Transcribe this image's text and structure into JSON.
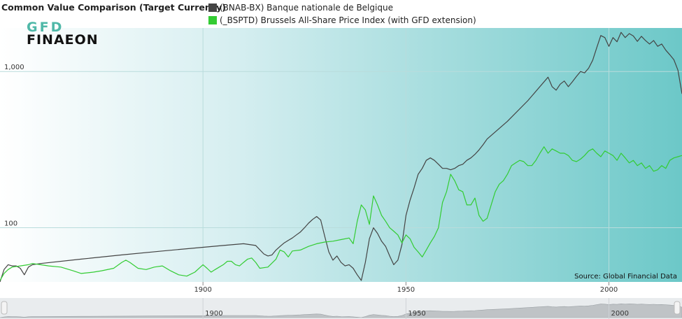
{
  "chart_data": {
    "type": "line",
    "title": "Common Value Comparison (Target Currency)",
    "xlim": [
      1850,
      2018
    ],
    "ylim": [
      45,
      1900
    ],
    "yscale": "log",
    "x_ticks": [
      1900,
      1950,
      2000
    ],
    "y_ticks": [
      100,
      1000
    ],
    "y_tick_labels": [
      "100",
      "1,000"
    ],
    "navigator_ticks": [
      "1900",
      "1950",
      "2000"
    ],
    "source": "Source: Global Financial Data",
    "grid": true,
    "series": [
      {
        "name": "(BNAB-BX) Banque nationale de Belgique",
        "color": "#444444",
        "points": [
          [
            1850,
            45
          ],
          [
            1851,
            54
          ],
          [
            1852,
            58
          ],
          [
            1853,
            57
          ],
          [
            1854,
            57
          ],
          [
            1855,
            55
          ],
          [
            1856,
            50
          ],
          [
            1857,
            56
          ],
          [
            1858,
            58
          ],
          [
            1860,
            59
          ],
          [
            1870,
            63
          ],
          [
            1880,
            67
          ],
          [
            1890,
            71
          ],
          [
            1895,
            73
          ],
          [
            1900,
            75
          ],
          [
            1905,
            77
          ],
          [
            1910,
            79
          ],
          [
            1913,
            77
          ],
          [
            1915,
            68
          ],
          [
            1916,
            66
          ],
          [
            1917,
            67
          ],
          [
            1918,
            72
          ],
          [
            1919,
            76
          ],
          [
            1920,
            80
          ],
          [
            1921,
            83
          ],
          [
            1922,
            86
          ],
          [
            1923,
            90
          ],
          [
            1924,
            94
          ],
          [
            1925,
            100
          ],
          [
            1926,
            107
          ],
          [
            1927,
            113
          ],
          [
            1928,
            118
          ],
          [
            1929,
            112
          ],
          [
            1930,
            88
          ],
          [
            1931,
            70
          ],
          [
            1932,
            62
          ],
          [
            1933,
            66
          ],
          [
            1934,
            60
          ],
          [
            1935,
            57
          ],
          [
            1936,
            58
          ],
          [
            1937,
            55
          ],
          [
            1938,
            50
          ],
          [
            1939,
            46
          ],
          [
            1940,
            60
          ],
          [
            1941,
            85
          ],
          [
            1942,
            100
          ],
          [
            1943,
            92
          ],
          [
            1944,
            82
          ],
          [
            1945,
            76
          ],
          [
            1946,
            66
          ],
          [
            1947,
            58
          ],
          [
            1948,
            62
          ],
          [
            1949,
            78
          ],
          [
            1950,
            120
          ],
          [
            1951,
            150
          ],
          [
            1952,
            180
          ],
          [
            1953,
            220
          ],
          [
            1954,
            240
          ],
          [
            1955,
            270
          ],
          [
            1956,
            280
          ],
          [
            1957,
            270
          ],
          [
            1958,
            255
          ],
          [
            1959,
            240
          ],
          [
            1960,
            240
          ],
          [
            1961,
            235
          ],
          [
            1962,
            240
          ],
          [
            1963,
            250
          ],
          [
            1964,
            255
          ],
          [
            1965,
            270
          ],
          [
            1966,
            280
          ],
          [
            1967,
            295
          ],
          [
            1968,
            315
          ],
          [
            1969,
            340
          ],
          [
            1970,
            370
          ],
          [
            1975,
            480
          ],
          [
            1980,
            650
          ],
          [
            1985,
            920
          ],
          [
            1986,
            800
          ],
          [
            1987,
            760
          ],
          [
            1988,
            830
          ],
          [
            1989,
            870
          ],
          [
            1990,
            800
          ],
          [
            1991,
            860
          ],
          [
            1992,
            930
          ],
          [
            1993,
            1000
          ],
          [
            1994,
            980
          ],
          [
            1995,
            1050
          ],
          [
            1996,
            1180
          ],
          [
            1997,
            1420
          ],
          [
            1998,
            1700
          ],
          [
            1999,
            1650
          ],
          [
            2000,
            1450
          ],
          [
            2001,
            1650
          ],
          [
            2002,
            1550
          ],
          [
            2003,
            1780
          ],
          [
            2004,
            1650
          ],
          [
            2005,
            1750
          ],
          [
            2006,
            1690
          ],
          [
            2007,
            1560
          ],
          [
            2008,
            1680
          ],
          [
            2009,
            1580
          ],
          [
            2010,
            1500
          ],
          [
            2011,
            1580
          ],
          [
            2012,
            1450
          ],
          [
            2013,
            1500
          ],
          [
            2014,
            1370
          ],
          [
            2015,
            1280
          ],
          [
            2016,
            1190
          ],
          [
            2017,
            1020
          ],
          [
            2018,
            720
          ]
        ]
      },
      {
        "name": "(_BSPTD) Brussels All-Share Price Index (with GFD extension)",
        "color": "#33cc33",
        "points": [
          [
            1850,
            46
          ],
          [
            1851,
            51
          ],
          [
            1852,
            54
          ],
          [
            1853,
            56
          ],
          [
            1855,
            57
          ],
          [
            1857,
            58
          ],
          [
            1858,
            59
          ],
          [
            1860,
            58
          ],
          [
            1862,
            57
          ],
          [
            1865,
            56
          ],
          [
            1868,
            53
          ],
          [
            1870,
            51
          ],
          [
            1873,
            52
          ],
          [
            1875,
            53
          ],
          [
            1878,
            55
          ],
          [
            1880,
            60
          ],
          [
            1881,
            62
          ],
          [
            1882,
            60
          ],
          [
            1884,
            55
          ],
          [
            1886,
            54
          ],
          [
            1888,
            56
          ],
          [
            1890,
            57
          ],
          [
            1892,
            53
          ],
          [
            1894,
            50
          ],
          [
            1896,
            49
          ],
          [
            1898,
            52
          ],
          [
            1900,
            58
          ],
          [
            1901,
            55
          ],
          [
            1902,
            52
          ],
          [
            1903,
            54
          ],
          [
            1904,
            56
          ],
          [
            1905,
            58
          ],
          [
            1906,
            61
          ],
          [
            1907,
            61
          ],
          [
            1908,
            58
          ],
          [
            1909,
            57
          ],
          [
            1910,
            60
          ],
          [
            1911,
            63
          ],
          [
            1912,
            64
          ],
          [
            1913,
            60
          ],
          [
            1914,
            55
          ],
          [
            1916,
            56
          ],
          [
            1918,
            63
          ],
          [
            1919,
            72
          ],
          [
            1920,
            70
          ],
          [
            1921,
            65
          ],
          [
            1922,
            71
          ],
          [
            1924,
            72
          ],
          [
            1926,
            76
          ],
          [
            1928,
            79
          ],
          [
            1930,
            81
          ],
          [
            1932,
            82
          ],
          [
            1934,
            84
          ],
          [
            1936,
            86
          ],
          [
            1937,
            79
          ],
          [
            1938,
            110
          ],
          [
            1939,
            140
          ],
          [
            1940,
            130
          ],
          [
            1941,
            105
          ],
          [
            1942,
            160
          ],
          [
            1943,
            140
          ],
          [
            1944,
            120
          ],
          [
            1945,
            110
          ],
          [
            1946,
            100
          ],
          [
            1947,
            95
          ],
          [
            1948,
            90
          ],
          [
            1949,
            80
          ],
          [
            1950,
            90
          ],
          [
            1951,
            85
          ],
          [
            1952,
            75
          ],
          [
            1953,
            70
          ],
          [
            1954,
            65
          ],
          [
            1955,
            72
          ],
          [
            1956,
            80
          ],
          [
            1957,
            88
          ],
          [
            1958,
            100
          ],
          [
            1959,
            145
          ],
          [
            1960,
            170
          ],
          [
            1961,
            220
          ],
          [
            1962,
            200
          ],
          [
            1963,
            175
          ],
          [
            1964,
            170
          ],
          [
            1965,
            140
          ],
          [
            1966,
            140
          ],
          [
            1967,
            155
          ],
          [
            1968,
            120
          ],
          [
            1969,
            110
          ],
          [
            1970,
            115
          ],
          [
            1971,
            140
          ],
          [
            1972,
            170
          ],
          [
            1973,
            190
          ],
          [
            1974,
            200
          ],
          [
            1975,
            220
          ],
          [
            1976,
            250
          ],
          [
            1977,
            260
          ],
          [
            1978,
            270
          ],
          [
            1979,
            265
          ],
          [
            1980,
            250
          ],
          [
            1981,
            250
          ],
          [
            1982,
            270
          ],
          [
            1983,
            300
          ],
          [
            1984,
            330
          ],
          [
            1985,
            300
          ],
          [
            1986,
            320
          ],
          [
            1987,
            310
          ],
          [
            1988,
            300
          ],
          [
            1989,
            300
          ],
          [
            1990,
            290
          ],
          [
            1991,
            270
          ],
          [
            1992,
            265
          ],
          [
            1993,
            275
          ],
          [
            1994,
            290
          ],
          [
            1995,
            310
          ],
          [
            1996,
            320
          ],
          [
            1997,
            300
          ],
          [
            1998,
            285
          ],
          [
            1999,
            310
          ],
          [
            2000,
            300
          ],
          [
            2001,
            290
          ],
          [
            2002,
            270
          ],
          [
            2003,
            300
          ],
          [
            2004,
            280
          ],
          [
            2005,
            260
          ],
          [
            2006,
            270
          ],
          [
            2007,
            250
          ],
          [
            2008,
            260
          ],
          [
            2009,
            240
          ],
          [
            2010,
            250
          ],
          [
            2011,
            230
          ],
          [
            2012,
            235
          ],
          [
            2013,
            250
          ],
          [
            2014,
            240
          ],
          [
            2015,
            270
          ],
          [
            2016,
            280
          ],
          [
            2017,
            285
          ],
          [
            2018,
            290
          ]
        ]
      }
    ]
  }
}
